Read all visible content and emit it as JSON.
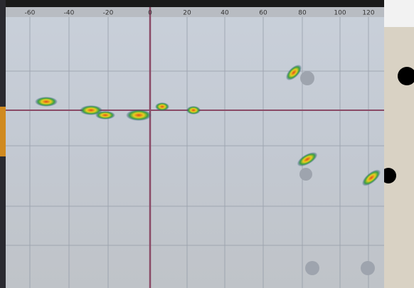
{
  "axis": {
    "ticks": [
      "-60",
      "-40",
      "-20",
      "0",
      "20",
      "40",
      "60",
      "80",
      "100",
      "120"
    ]
  }
}
